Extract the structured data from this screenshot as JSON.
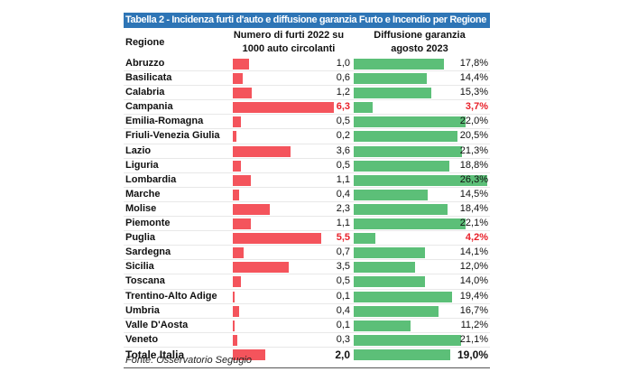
{
  "chart_data": {
    "type": "table",
    "title": "Tabella 2 - Incidenza furti d'auto e diffusione garanzia Furto e Incendio per Regione",
    "columns": [
      "Regione",
      "Numero di furti 2022 su 1000 auto circolanti",
      "Diffusione garanzia agosto 2023"
    ],
    "col1_header": [
      "Numero di furti 2022 su",
      "1000 auto circolanti"
    ],
    "col2_header": [
      "Diffusione garanzia",
      "agosto 2023"
    ],
    "colors": {
      "furti": "#f4545c",
      "diffusione": "#5cbf78",
      "highlight": "#e8212a",
      "title_bg": "#2e75b6"
    },
    "rows": [
      {
        "regione": "Abruzzo",
        "furti": "1,0",
        "diffusione": "17,8%",
        "f": 1.0,
        "d": 17.8
      },
      {
        "regione": "Basilicata",
        "furti": "0,6",
        "diffusione": "14,4%",
        "f": 0.6,
        "d": 14.4
      },
      {
        "regione": "Calabria",
        "furti": "1,2",
        "diffusione": "15,3%",
        "f": 1.2,
        "d": 15.3
      },
      {
        "regione": "Campania",
        "furti": "6,3",
        "diffusione": "3,7%",
        "f": 6.3,
        "d": 3.7,
        "highlight": true
      },
      {
        "regione": "Emilia-Romagna",
        "furti": "0,5",
        "diffusione": "22,0%",
        "f": 0.5,
        "d": 22.0
      },
      {
        "regione": "Friuli-Venezia Giulia",
        "furti": "0,2",
        "diffusione": "20,5%",
        "f": 0.2,
        "d": 20.5
      },
      {
        "regione": "Lazio",
        "furti": "3,6",
        "diffusione": "21,3%",
        "f": 3.6,
        "d": 21.3
      },
      {
        "regione": "Liguria",
        "furti": "0,5",
        "diffusione": "18,8%",
        "f": 0.5,
        "d": 18.8
      },
      {
        "regione": "Lombardia",
        "furti": "1,1",
        "diffusione": "26,3%",
        "f": 1.1,
        "d": 26.3
      },
      {
        "regione": "Marche",
        "furti": "0,4",
        "diffusione": "14,5%",
        "f": 0.4,
        "d": 14.5
      },
      {
        "regione": "Molise",
        "furti": "2,3",
        "diffusione": "18,4%",
        "f": 2.3,
        "d": 18.4
      },
      {
        "regione": "Piemonte",
        "furti": "1,1",
        "diffusione": "22,1%",
        "f": 1.1,
        "d": 22.1
      },
      {
        "regione": "Puglia",
        "furti": "5,5",
        "diffusione": "4,2%",
        "f": 5.5,
        "d": 4.2,
        "highlight": true
      },
      {
        "regione": "Sardegna",
        "furti": "0,7",
        "diffusione": "14,1%",
        "f": 0.7,
        "d": 14.1
      },
      {
        "regione": "Sicilia",
        "furti": "3,5",
        "diffusione": "12,0%",
        "f": 3.5,
        "d": 12.0
      },
      {
        "regione": "Toscana",
        "furti": "0,5",
        "diffusione": "14,0%",
        "f": 0.5,
        "d": 14.0
      },
      {
        "regione": "Trentino-Alto Adige",
        "furti": "0,1",
        "diffusione": "19,4%",
        "f": 0.1,
        "d": 19.4
      },
      {
        "regione": "Umbria",
        "furti": "0,4",
        "diffusione": "16,7%",
        "f": 0.4,
        "d": 16.7
      },
      {
        "regione": "Valle D'Aosta",
        "furti": "0,1",
        "diffusione": "11,2%",
        "f": 0.1,
        "d": 11.2
      },
      {
        "regione": "Veneto",
        "furti": "0,3",
        "diffusione": "21,1%",
        "f": 0.3,
        "d": 21.1
      },
      {
        "regione": "Totale Italia",
        "furti": "2,0",
        "diffusione": "19,0%",
        "f": 2.0,
        "d": 19.0,
        "total": true
      }
    ],
    "source": "Fonte: Osservatorio Segugio"
  }
}
